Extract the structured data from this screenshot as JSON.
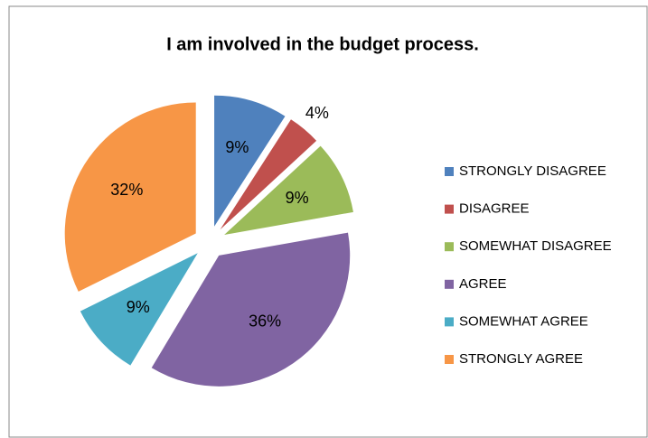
{
  "chart_data": {
    "type": "pie",
    "title": "I am involved in the budget process.",
    "categories": [
      "STRONGLY DISAGREE",
      "DISAGREE",
      "SOMEWHAT DISAGREE",
      "AGREE",
      "SOMEWHAT AGREE",
      "STRONGLY AGREE"
    ],
    "values": [
      9,
      4,
      9,
      36,
      9,
      32
    ],
    "value_labels": [
      "9%",
      "4%",
      "9%",
      "36%",
      "9%",
      "32%"
    ],
    "colors": [
      "#4f81bd",
      "#c0504d",
      "#9bbb59",
      "#8064a2",
      "#4bacc6",
      "#f79646"
    ],
    "legend": "right"
  }
}
